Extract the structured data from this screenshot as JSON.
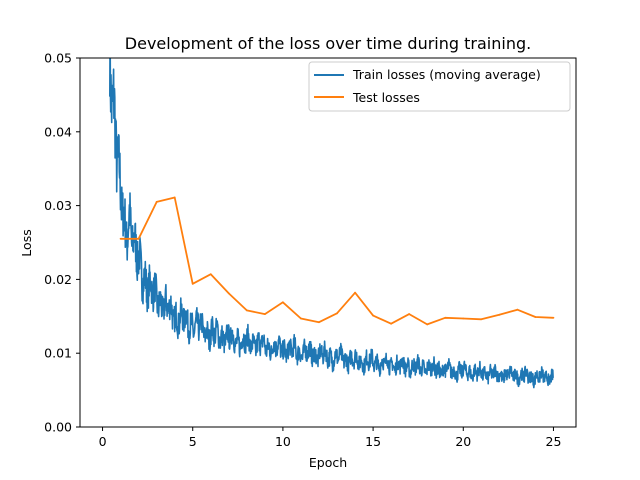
{
  "chart_data": {
    "type": "line",
    "title": "Development of the loss over time during training.",
    "xlabel": "Epoch",
    "ylabel": "Loss",
    "xlim": [
      -1.25,
      26.25
    ],
    "ylim": [
      0.0,
      0.05
    ],
    "xticks": [
      0,
      5,
      10,
      15,
      20,
      25
    ],
    "xtick_labels": [
      "0",
      "5",
      "10",
      "15",
      "20",
      "25"
    ],
    "yticks": [
      0.0,
      0.01,
      0.02,
      0.03,
      0.04,
      0.05
    ],
    "ytick_labels": [
      "0.00",
      "0.01",
      "0.02",
      "0.03",
      "0.04",
      "0.05"
    ],
    "grid": false,
    "legend_position": "top-right",
    "colors": {
      "train": "#1f77b4",
      "test": "#ff7f0e"
    },
    "series": [
      {
        "name": "Train losses (moving average)",
        "x": [
          0.4,
          0.5,
          0.6,
          0.7,
          0.8,
          0.9,
          1.0,
          1.1,
          1.2,
          1.3,
          1.4,
          1.5,
          1.6,
          1.7,
          1.8,
          1.9,
          2.0,
          2.2,
          2.4,
          2.6,
          2.8,
          3.0,
          3.3,
          3.6,
          4.0,
          4.5,
          5.0,
          5.5,
          6.0,
          7.0,
          8.0,
          9.0,
          10.0,
          11.0,
          12.0,
          13.0,
          14.0,
          15.0,
          16.0,
          17.0,
          18.0,
          19.0,
          20.0,
          21.0,
          22.0,
          23.0,
          24.0,
          25.0
        ],
        "y": [
          0.049,
          0.047,
          0.045,
          0.042,
          0.038,
          0.034,
          0.031,
          0.029,
          0.027,
          0.026,
          0.0275,
          0.029,
          0.027,
          0.0255,
          0.024,
          0.023,
          0.022,
          0.021,
          0.02,
          0.019,
          0.018,
          0.0175,
          0.0168,
          0.016,
          0.0152,
          0.0145,
          0.0138,
          0.0132,
          0.0127,
          0.012,
          0.0115,
          0.011,
          0.0106,
          0.0102,
          0.0098,
          0.0094,
          0.0091,
          0.0088,
          0.0085,
          0.0082,
          0.008,
          0.0077,
          0.0075,
          0.0073,
          0.0071,
          0.007,
          0.0068,
          0.0067
        ],
        "fluctuating": true
      },
      {
        "name": "Test losses",
        "x": [
          1,
          2,
          3,
          4,
          5,
          6,
          7,
          8,
          9,
          10,
          11,
          12,
          13,
          14,
          15,
          16,
          17,
          18,
          19,
          20,
          21,
          22,
          23,
          24,
          25
        ],
        "y": [
          0.0255,
          0.0255,
          0.0305,
          0.0311,
          0.0194,
          0.0207,
          0.0181,
          0.0158,
          0.0153,
          0.0169,
          0.0147,
          0.0142,
          0.0154,
          0.0182,
          0.0151,
          0.014,
          0.0153,
          0.0139,
          0.0148,
          0.0147,
          0.0146,
          0.0152,
          0.0159,
          0.0149,
          0.0148
        ]
      }
    ]
  }
}
